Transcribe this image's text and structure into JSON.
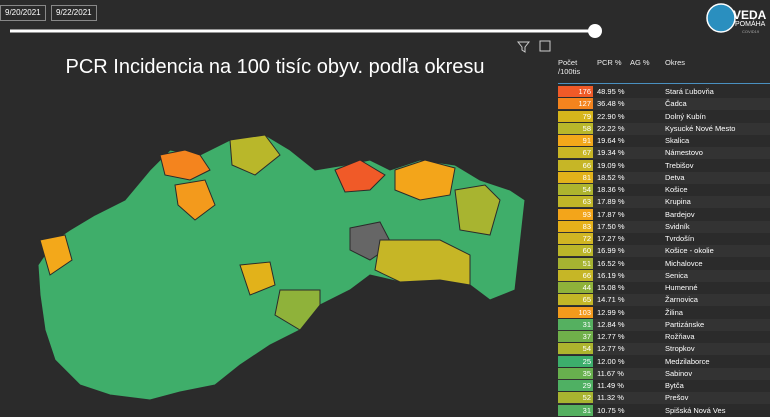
{
  "filters": {
    "date_from": "9/20/2021",
    "date_to": "9/22/2021"
  },
  "logo": {
    "name": "VEDA",
    "tagline": "POMÁHA",
    "sub": "COVID19"
  },
  "title": "PCR Incidencia na 100 tisíc obyv. podľa okresu",
  "table": {
    "headers": [
      "Počet /100tis",
      "PCR %",
      "AG %",
      "Okres"
    ],
    "rows": [
      {
        "count": 176,
        "pcr": "48.95 %",
        "okres": "Stará Ľubovňa",
        "color": "#f05a28"
      },
      {
        "count": 127,
        "pcr": "36.48 %",
        "okres": "Čadca",
        "color": "#f4841e"
      },
      {
        "count": 79,
        "pcr": "22.90 %",
        "okres": "Dolný Kubín",
        "color": "#d6b51c"
      },
      {
        "count": 58,
        "pcr": "22.22 %",
        "okres": "Kysucké Nové Mesto",
        "color": "#b9b72a"
      },
      {
        "count": 91,
        "pcr": "19.64 %",
        "okres": "Skalica",
        "color": "#f3a81a"
      },
      {
        "count": 67,
        "pcr": "19.34 %",
        "okres": "Námestovo",
        "color": "#c9b625"
      },
      {
        "count": 66,
        "pcr": "19.09 %",
        "okres": "Trebišov",
        "color": "#c6b626"
      },
      {
        "count": 81,
        "pcr": "18.52 %",
        "okres": "Detva",
        "color": "#e2b21a"
      },
      {
        "count": 54,
        "pcr": "18.36 %",
        "okres": "Košice",
        "color": "#adb42e"
      },
      {
        "count": 63,
        "pcr": "17.89 %",
        "okres": "Krupina",
        "color": "#c0b628"
      },
      {
        "count": 93,
        "pcr": "17.87 %",
        "okres": "Bardejov",
        "color": "#f3a51a"
      },
      {
        "count": 83,
        "pcr": "17.50 %",
        "okres": "Svidník",
        "color": "#e6b11a"
      },
      {
        "count": 72,
        "pcr": "17.27 %",
        "okres": "Tvrdošín",
        "color": "#d0b523"
      },
      {
        "count": 60,
        "pcr": "16.99 %",
        "okres": "Košice - okolie",
        "color": "#bbb629"
      },
      {
        "count": 51,
        "pcr": "16.52 %",
        "okres": "Michalovce",
        "color": "#a6b331"
      },
      {
        "count": 66,
        "pcr": "16.19 %",
        "okres": "Senica",
        "color": "#c6b626"
      },
      {
        "count": 44,
        "pcr": "15.08 %",
        "okres": "Humenné",
        "color": "#8fb23a"
      },
      {
        "count": 65,
        "pcr": "14.71 %",
        "okres": "Žarnovica",
        "color": "#c3b627"
      },
      {
        "count": 103,
        "pcr": "12.99 %",
        "okres": "Žilina",
        "color": "#f39a1c"
      },
      {
        "count": 31,
        "pcr": "12.84 %",
        "okres": "Partizánske",
        "color": "#55b060"
      },
      {
        "count": 37,
        "pcr": "12.77 %",
        "okres": "Rožňava",
        "color": "#70b04a"
      },
      {
        "count": 54,
        "pcr": "12.77 %",
        "okres": "Stropkov",
        "color": "#adb42e"
      },
      {
        "count": 25,
        "pcr": "12.00 %",
        "okres": "Medzilaborce",
        "color": "#3cae6c"
      },
      {
        "count": 35,
        "pcr": "11.67 %",
        "okres": "Sabinov",
        "color": "#68b04e"
      },
      {
        "count": 29,
        "pcr": "11.49 %",
        "okres": "Bytča",
        "color": "#4fb063"
      },
      {
        "count": 52,
        "pcr": "11.32 %",
        "okres": "Prešov",
        "color": "#a8b430"
      },
      {
        "count": 31,
        "pcr": "10.75 %",
        "okres": "Spišská Nová Ves",
        "color": "#55b060"
      }
    ]
  }
}
